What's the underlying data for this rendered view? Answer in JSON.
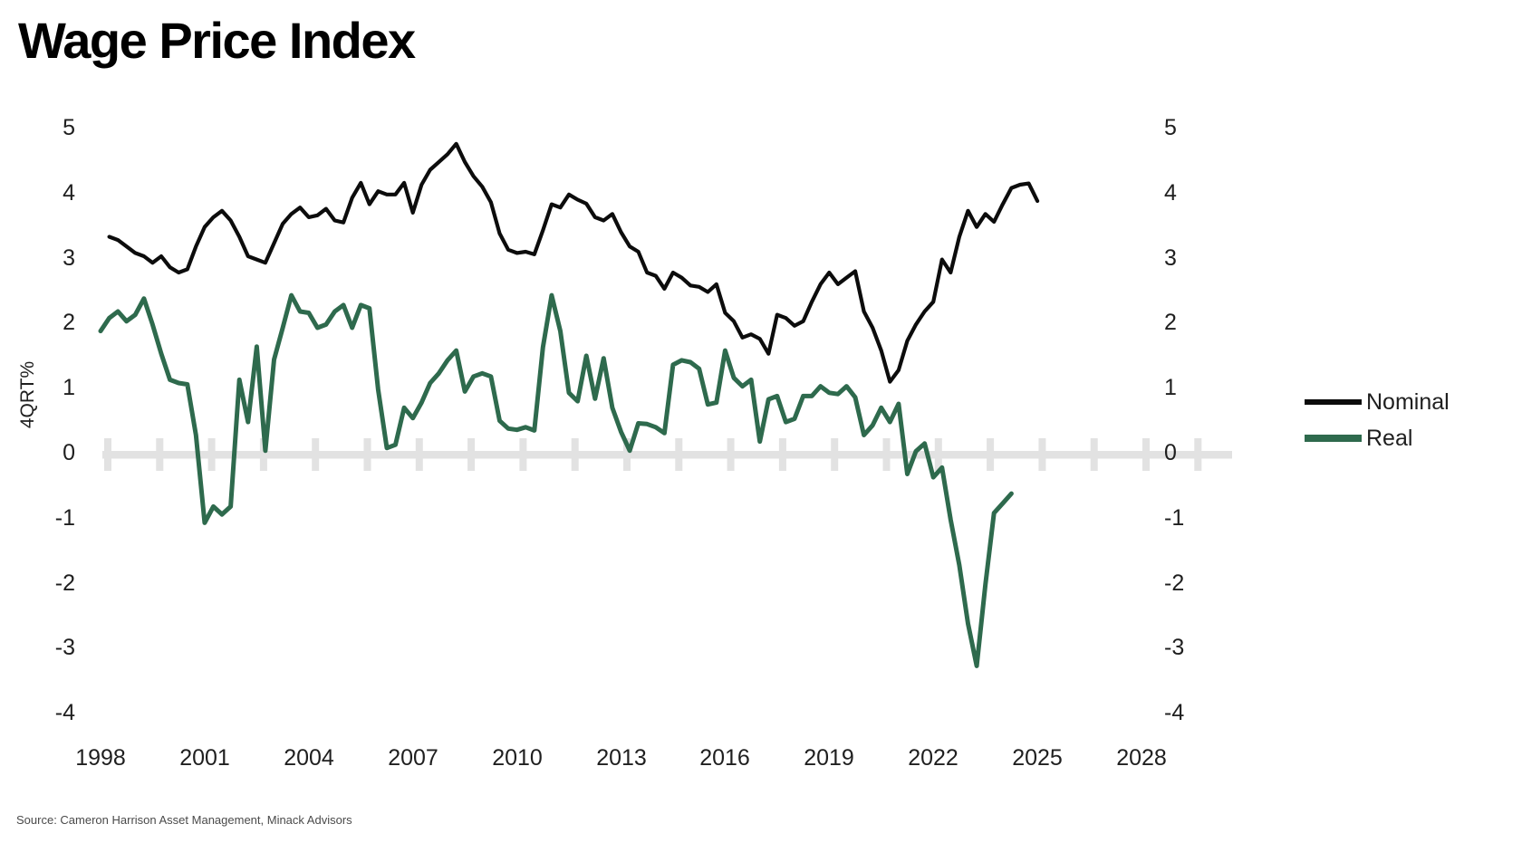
{
  "chart_data": {
    "type": "line",
    "title": "Wage Price Index",
    "ylabel": "4QRT%",
    "source": "Source: Cameron Harrison Asset Management, Minack Advisors",
    "ylim": [
      -4,
      5
    ],
    "xlim": [
      1998,
      2028.6
    ],
    "y_ticks": [
      5,
      4,
      3,
      2,
      1,
      0,
      -1,
      -2,
      -3,
      -4
    ],
    "x_ticks": [
      1998,
      2001,
      2004,
      2007,
      2010,
      2013,
      2016,
      2019,
      2022,
      2025,
      2028
    ],
    "grid": "zero-baseline-only",
    "baseline_color": "#e2e2e2",
    "legend_position": "right",
    "series": [
      {
        "name": "Nominal",
        "color": "#0c0c0c",
        "points": [
          [
            1998.25,
            3.35
          ],
          [
            1998.5,
            3.3
          ],
          [
            1998.75,
            3.2
          ],
          [
            1999,
            3.1
          ],
          [
            1999.25,
            3.05
          ],
          [
            1999.5,
            2.95
          ],
          [
            1999.75,
            3.05
          ],
          [
            2000,
            2.88
          ],
          [
            2000.25,
            2.8
          ],
          [
            2000.5,
            2.85
          ],
          [
            2000.75,
            3.2
          ],
          [
            2001,
            3.5
          ],
          [
            2001.25,
            3.65
          ],
          [
            2001.5,
            3.75
          ],
          [
            2001.75,
            3.6
          ],
          [
            2002,
            3.35
          ],
          [
            2002.25,
            3.05
          ],
          [
            2002.5,
            3.0
          ],
          [
            2002.75,
            2.95
          ],
          [
            2003,
            3.25
          ],
          [
            2003.25,
            3.55
          ],
          [
            2003.5,
            3.7
          ],
          [
            2003.75,
            3.8
          ],
          [
            2004,
            3.65
          ],
          [
            2004.25,
            3.68
          ],
          [
            2004.5,
            3.78
          ],
          [
            2004.75,
            3.6
          ],
          [
            2005,
            3.57
          ],
          [
            2005.25,
            3.95
          ],
          [
            2005.5,
            4.18
          ],
          [
            2005.75,
            3.85
          ],
          [
            2006,
            4.05
          ],
          [
            2006.25,
            4.0
          ],
          [
            2006.5,
            4.0
          ],
          [
            2006.75,
            4.18
          ],
          [
            2007,
            3.72
          ],
          [
            2007.25,
            4.15
          ],
          [
            2007.5,
            4.38
          ],
          [
            2007.75,
            4.5
          ],
          [
            2008,
            4.62
          ],
          [
            2008.25,
            4.78
          ],
          [
            2008.5,
            4.5
          ],
          [
            2008.75,
            4.28
          ],
          [
            2009,
            4.12
          ],
          [
            2009.25,
            3.88
          ],
          [
            2009.5,
            3.4
          ],
          [
            2009.75,
            3.15
          ],
          [
            2010,
            3.1
          ],
          [
            2010.25,
            3.12
          ],
          [
            2010.5,
            3.08
          ],
          [
            2010.75,
            3.45
          ],
          [
            2011,
            3.85
          ],
          [
            2011.25,
            3.8
          ],
          [
            2011.5,
            4.0
          ],
          [
            2011.75,
            3.92
          ],
          [
            2012,
            3.86
          ],
          [
            2012.25,
            3.65
          ],
          [
            2012.5,
            3.6
          ],
          [
            2012.75,
            3.7
          ],
          [
            2013,
            3.42
          ],
          [
            2013.25,
            3.2
          ],
          [
            2013.5,
            3.12
          ],
          [
            2013.75,
            2.8
          ],
          [
            2014,
            2.75
          ],
          [
            2014.25,
            2.55
          ],
          [
            2014.5,
            2.8
          ],
          [
            2014.75,
            2.72
          ],
          [
            2015,
            2.6
          ],
          [
            2015.25,
            2.58
          ],
          [
            2015.5,
            2.5
          ],
          [
            2015.75,
            2.62
          ],
          [
            2016,
            2.18
          ],
          [
            2016.25,
            2.05
          ],
          [
            2016.5,
            1.8
          ],
          [
            2016.75,
            1.85
          ],
          [
            2017,
            1.78
          ],
          [
            2017.25,
            1.55
          ],
          [
            2017.5,
            2.15
          ],
          [
            2017.75,
            2.1
          ],
          [
            2018,
            1.98
          ],
          [
            2018.25,
            2.05
          ],
          [
            2018.5,
            2.35
          ],
          [
            2018.75,
            2.62
          ],
          [
            2019,
            2.8
          ],
          [
            2019.25,
            2.62
          ],
          [
            2019.5,
            2.72
          ],
          [
            2019.75,
            2.82
          ],
          [
            2020,
            2.2
          ],
          [
            2020.25,
            1.95
          ],
          [
            2020.5,
            1.6
          ],
          [
            2020.75,
            1.12
          ],
          [
            2021,
            1.3
          ],
          [
            2021.25,
            1.75
          ],
          [
            2021.5,
            2.0
          ],
          [
            2021.75,
            2.2
          ],
          [
            2022,
            2.35
          ],
          [
            2022.25,
            3.0
          ],
          [
            2022.5,
            2.8
          ],
          [
            2022.75,
            3.35
          ],
          [
            2023,
            3.75
          ],
          [
            2023.25,
            3.5
          ],
          [
            2023.5,
            3.7
          ],
          [
            2023.75,
            3.58
          ],
          [
            2024,
            3.85
          ],
          [
            2024.25,
            4.1
          ],
          [
            2024.5,
            4.15
          ],
          [
            2024.75,
            4.17
          ],
          [
            2025,
            3.9
          ]
        ]
      },
      {
        "name": "Real",
        "color": "#2e6a4d",
        "points": [
          [
            1998,
            1.9
          ],
          [
            1998.25,
            2.1
          ],
          [
            1998.5,
            2.2
          ],
          [
            1998.75,
            2.05
          ],
          [
            1999,
            2.15
          ],
          [
            1999.25,
            2.4
          ],
          [
            1999.5,
            2.0
          ],
          [
            1999.75,
            1.55
          ],
          [
            2000,
            1.15
          ],
          [
            2000.25,
            1.1
          ],
          [
            2000.5,
            1.08
          ],
          [
            2000.75,
            0.3
          ],
          [
            2001,
            -1.05
          ],
          [
            2001.25,
            -0.8
          ],
          [
            2001.5,
            -0.92
          ],
          [
            2001.75,
            -0.8
          ],
          [
            2002,
            1.15
          ],
          [
            2002.25,
            0.5
          ],
          [
            2002.5,
            1.66
          ],
          [
            2002.75,
            0.06
          ],
          [
            2003,
            1.46
          ],
          [
            2003.25,
            1.95
          ],
          [
            2003.5,
            2.45
          ],
          [
            2003.75,
            2.2
          ],
          [
            2004,
            2.18
          ],
          [
            2004.25,
            1.95
          ],
          [
            2004.5,
            2.0
          ],
          [
            2004.75,
            2.2
          ],
          [
            2005,
            2.3
          ],
          [
            2005.25,
            1.95
          ],
          [
            2005.5,
            2.3
          ],
          [
            2005.75,
            2.25
          ],
          [
            2006,
            1.0
          ],
          [
            2006.25,
            0.1
          ],
          [
            2006.5,
            0.15
          ],
          [
            2006.75,
            0.72
          ],
          [
            2007,
            0.56
          ],
          [
            2007.25,
            0.8
          ],
          [
            2007.5,
            1.1
          ],
          [
            2007.75,
            1.25
          ],
          [
            2008,
            1.45
          ],
          [
            2008.25,
            1.6
          ],
          [
            2008.5,
            0.97
          ],
          [
            2008.75,
            1.2
          ],
          [
            2009,
            1.25
          ],
          [
            2009.25,
            1.2
          ],
          [
            2009.5,
            0.52
          ],
          [
            2009.75,
            0.4
          ],
          [
            2010,
            0.38
          ],
          [
            2010.25,
            0.42
          ],
          [
            2010.5,
            0.37
          ],
          [
            2010.75,
            1.65
          ],
          [
            2011,
            2.45
          ],
          [
            2011.25,
            1.9
          ],
          [
            2011.5,
            0.95
          ],
          [
            2011.75,
            0.82
          ],
          [
            2012,
            1.52
          ],
          [
            2012.25,
            0.86
          ],
          [
            2012.5,
            1.48
          ],
          [
            2012.75,
            0.72
          ],
          [
            2013,
            0.35
          ],
          [
            2013.25,
            0.06
          ],
          [
            2013.5,
            0.48
          ],
          [
            2013.75,
            0.47
          ],
          [
            2014,
            0.42
          ],
          [
            2014.25,
            0.33
          ],
          [
            2014.5,
            1.38
          ],
          [
            2014.75,
            1.45
          ],
          [
            2015,
            1.42
          ],
          [
            2015.25,
            1.32
          ],
          [
            2015.5,
            0.77
          ],
          [
            2015.75,
            0.8
          ],
          [
            2016,
            1.6
          ],
          [
            2016.25,
            1.18
          ],
          [
            2016.5,
            1.05
          ],
          [
            2016.75,
            1.15
          ],
          [
            2017,
            0.2
          ],
          [
            2017.25,
            0.85
          ],
          [
            2017.5,
            0.9
          ],
          [
            2017.75,
            0.5
          ],
          [
            2018,
            0.55
          ],
          [
            2018.25,
            0.9
          ],
          [
            2018.5,
            0.9
          ],
          [
            2018.75,
            1.05
          ],
          [
            2019,
            0.95
          ],
          [
            2019.25,
            0.93
          ],
          [
            2019.5,
            1.05
          ],
          [
            2019.75,
            0.88
          ],
          [
            2020,
            0.3
          ],
          [
            2020.25,
            0.45
          ],
          [
            2020.5,
            0.72
          ],
          [
            2020.75,
            0.5
          ],
          [
            2021,
            0.78
          ],
          [
            2021.25,
            -0.3
          ],
          [
            2021.5,
            0.05
          ],
          [
            2021.75,
            0.17
          ],
          [
            2022,
            -0.35
          ],
          [
            2022.25,
            -0.2
          ],
          [
            2022.5,
            -1.0
          ],
          [
            2022.75,
            -1.7
          ],
          [
            2023,
            -2.6
          ],
          [
            2023.25,
            -3.25
          ],
          [
            2023.5,
            -2.0
          ],
          [
            2023.75,
            -0.9
          ],
          [
            2024,
            -0.75
          ],
          [
            2024.25,
            -0.6
          ]
        ]
      }
    ]
  }
}
